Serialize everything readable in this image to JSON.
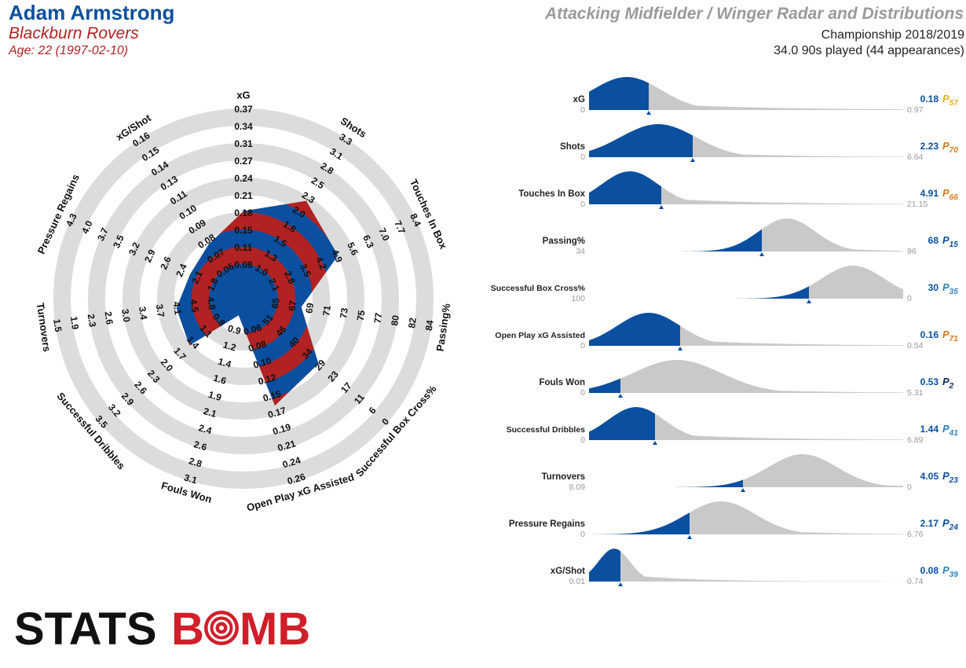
{
  "header": {
    "player": "Adam Armstrong",
    "team": "Blackburn Rovers",
    "age": "Age: 22 (1997-02-10)",
    "title": "Attacking Midfielder / Winger Radar and Distributions",
    "competition": "Championship 2018/2019",
    "minutes": "34.0 90s played (44 appearances)"
  },
  "logo": {
    "text": "STATSBOMB",
    "part1": "STATS",
    "part2": "B",
    "part3": "MB"
  },
  "colors": {
    "primary": "#0a4fa0",
    "secondary": "#b22222",
    "ring": "#dcdcdc",
    "dist_grey": "#c9c9c9"
  },
  "chart_data": [
    {
      "type": "radar",
      "axes": [
        {
          "label": "xG",
          "ticks": [
            "0.08",
            "0.11",
            "0.15",
            "0.18",
            "0.21",
            "0.24",
            "0.27",
            "0.31",
            "0.34",
            "0.37"
          ],
          "value": 0.18,
          "min": 0.05,
          "max": 0.37
        },
        {
          "label": "Shots",
          "ticks": [
            "1.0",
            "1.3",
            "1.5",
            "1.8",
            "2.0",
            "2.3",
            "2.5",
            "2.8",
            "3.1",
            "3.3"
          ],
          "value": 2.23,
          "min": 0.8,
          "max": 3.3
        },
        {
          "label": "Touches In Box",
          "ticks": [
            "2.1",
            "2.8",
            "3.5",
            "4.2",
            "4.9",
            "5.6",
            "6.3",
            "7.0",
            "7.7",
            "8.4"
          ],
          "value": 4.91,
          "min": 1.4,
          "max": 8.4
        },
        {
          "label": "Passing%",
          "ticks": [
            "65",
            "67",
            "69",
            "71",
            "73",
            "75",
            "77",
            "80",
            "82",
            "84"
          ],
          "value": 68,
          "min": 63,
          "max": 84
        },
        {
          "label": "Successful Box Cross%",
          "ticks": [
            "51",
            "46",
            "40",
            "34",
            "29",
            "23",
            "17",
            "11",
            "6",
            "0"
          ],
          "value": 30,
          "min": 57,
          "max": 0
        },
        {
          "label": "Open Play xG Assisted",
          "ticks": [
            "0.06",
            "0.08",
            "0.10",
            "0.12",
            "0.15",
            "0.17",
            "0.19",
            "0.21",
            "0.24",
            "0.26"
          ],
          "value": 0.16,
          "min": 0.04,
          "max": 0.26
        },
        {
          "label": "Fouls Won",
          "ticks": [
            "0.9",
            "1.2",
            "1.4",
            "1.6",
            "1.9",
            "2.1",
            "2.4",
            "2.6",
            "2.8",
            "3.1"
          ],
          "value": 0.53,
          "min": 0.7,
          "max": 3.1
        },
        {
          "label": "Successful Dribbles",
          "ticks": [
            "0.8",
            "1.1",
            "1.4",
            "1.7",
            "2.0",
            "2.3",
            "2.6",
            "2.9",
            "3.2",
            "3.5"
          ],
          "value": 1.44,
          "min": 0.5,
          "max": 3.5
        },
        {
          "label": "Turnovers",
          "ticks": [
            "4.8",
            "4.5",
            "4.1",
            "3.7",
            "3.4",
            "3.0",
            "2.6",
            "2.3",
            "1.9",
            "1.5"
          ],
          "value": 4.05,
          "min": 5.1,
          "max": 1.5
        },
        {
          "label": "Pressure Regains",
          "ticks": [
            "1.8",
            "2.1",
            "2.4",
            "2.6",
            "2.9",
            "3.2",
            "3.5",
            "3.7",
            "4.0",
            "4.3"
          ],
          "value": 2.17,
          "min": 1.5,
          "max": 4.3
        }
      ]
    },
    {
      "type": "area",
      "rows": [
        {
          "label": "xG",
          "left": "0",
          "right": "0.97",
          "value": "0.18",
          "p": "57",
          "pcolor": "#e8b21a",
          "pos": 0.19,
          "peak": 0.12,
          "width": 0.11,
          "tail": 0.35,
          "reverse": false
        },
        {
          "label": "Shots",
          "left": "0",
          "right": "6.64",
          "value": "2.23",
          "p": "70",
          "pcolor": "#d9791a",
          "pos": 0.33,
          "peak": 0.22,
          "width": 0.12,
          "tail": 0.25,
          "reverse": false
        },
        {
          "label": "Touches In Box",
          "left": "0",
          "right": "21.15",
          "value": "4.91",
          "p": "66",
          "pcolor": "#d9791a",
          "pos": 0.23,
          "peak": 0.13,
          "width": 0.09,
          "tail": 0.3,
          "reverse": false
        },
        {
          "label": "Passing%",
          "left": "34",
          "right": "96",
          "value": "68",
          "p": "15",
          "pcolor": "#0a4fa0",
          "pos": 0.55,
          "peak": 0.63,
          "width": 0.09,
          "tail": 0.15,
          "reverse": false
        },
        {
          "label": "Successful Box Cross%",
          "left": "100",
          "right": "0",
          "value": "30",
          "p": "35",
          "pcolor": "#2e84c0",
          "pos": 0.7,
          "peak": 0.84,
          "width": 0.1,
          "tail": 0.15,
          "reverse": true
        },
        {
          "label": "Open Play xG Assisted",
          "left": "0",
          "right": "0.54",
          "value": "0.16",
          "p": "71",
          "pcolor": "#d9791a",
          "pos": 0.29,
          "peak": 0.19,
          "width": 0.1,
          "tail": 0.3,
          "reverse": false
        },
        {
          "label": "Fouls Won",
          "left": "0",
          "right": "5.31",
          "value": "0.53",
          "p": "2",
          "pcolor": "#102a5c",
          "pos": 0.1,
          "peak": 0.28,
          "width": 0.14,
          "tail": 0.25,
          "reverse": false
        },
        {
          "label": "Successful Dribbles",
          "left": "0",
          "right": "6.89",
          "value": "1.44",
          "p": "41",
          "pcolor": "#2e84c0",
          "pos": 0.21,
          "peak": 0.15,
          "width": 0.09,
          "tail": 0.3,
          "reverse": false
        },
        {
          "label": "Turnovers",
          "left": "8.09",
          "right": "0",
          "value": "4.05",
          "p": "23",
          "pcolor": "#0a4fa0",
          "pos": 0.49,
          "peak": 0.68,
          "width": 0.11,
          "tail": 0.18,
          "reverse": true
        },
        {
          "label": "Pressure Regains",
          "left": "0",
          "right": "6.76",
          "value": "2.17",
          "p": "24",
          "pcolor": "#0a4fa0",
          "pos": 0.32,
          "peak": 0.42,
          "width": 0.11,
          "tail": 0.2,
          "reverse": false
        },
        {
          "label": "xG/Shot",
          "left": "0.01",
          "right": "0.74",
          "value": "0.08",
          "p": "39",
          "pcolor": "#2e84c0",
          "pos": 0.1,
          "peak": 0.08,
          "width": 0.05,
          "tail": 0.2,
          "reverse": false
        }
      ]
    }
  ],
  "radar_extra": [
    {
      "label": "xG/Shot",
      "ticks": [
        "0.06",
        "0.07",
        "0.08",
        "0.09",
        "0.10",
        "0.11",
        "0.13",
        "0.14",
        "0.15",
        "0.16"
      ],
      "value": 0.08,
      "min": 0.05,
      "max": 0.16
    }
  ]
}
